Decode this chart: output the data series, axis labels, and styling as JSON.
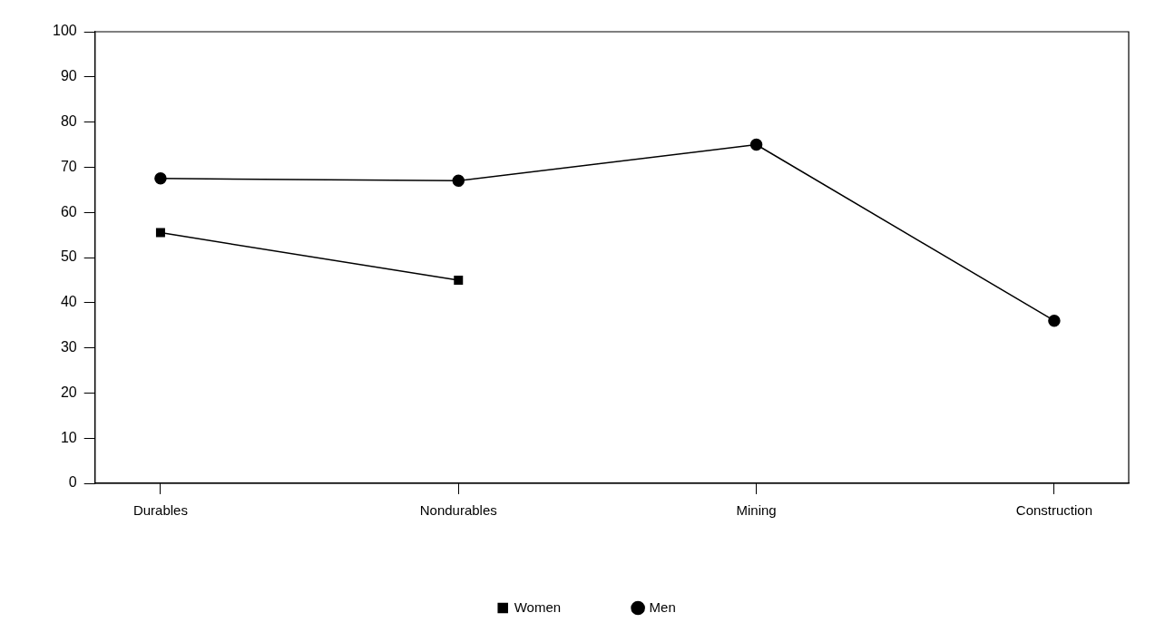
{
  "chart_data": {
    "type": "line",
    "categories": [
      "Durables",
      "Nondurables",
      "Mining",
      "Construction"
    ],
    "series": [
      {
        "name": "Women",
        "color": "#000000",
        "values": [
          55.5,
          45,
          null,
          null
        ],
        "marker": "square"
      },
      {
        "name": "Men",
        "color": "#000000",
        "values": [
          67.5,
          67,
          75,
          36
        ],
        "marker": "circle"
      }
    ],
    "ylim": [
      0,
      100
    ],
    "yticks": [
      0,
      10,
      20,
      30,
      40,
      50,
      60,
      70,
      80,
      90,
      100
    ],
    "grid": false,
    "legend": "bottom",
    "line_style": "solid"
  }
}
